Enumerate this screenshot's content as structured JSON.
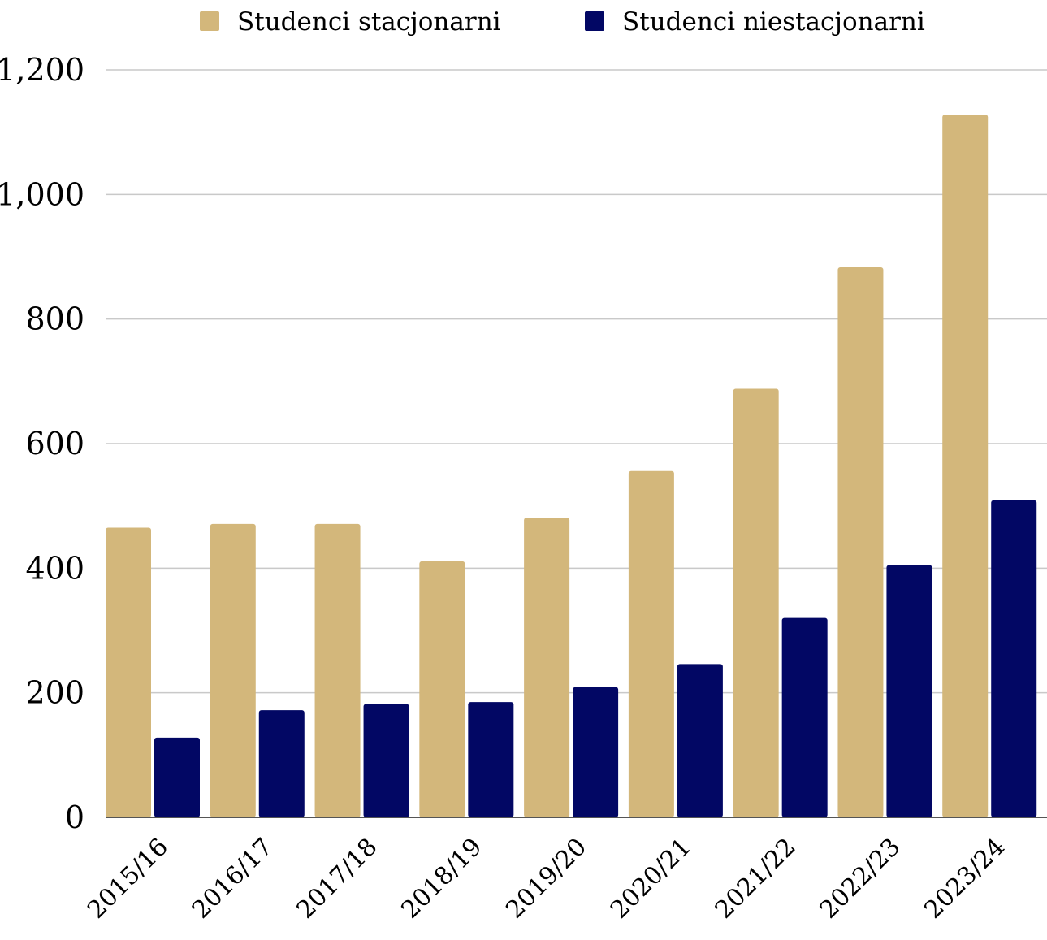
{
  "chart_data": {
    "type": "bar",
    "categories": [
      "2015/16",
      "2016/17",
      "2017/18",
      "2018/19",
      "2019/20",
      "2020/21",
      "2021/22",
      "2022/23",
      "2023/24"
    ],
    "series": [
      {
        "name": "Studenci stacjonarni",
        "color": "#d3b77b",
        "values": [
          465,
          471,
          471,
          411,
          481,
          556,
          688,
          883,
          1128
        ]
      },
      {
        "name": "Studenci niestacjonarni",
        "color": "#020764",
        "values": [
          128,
          172,
          182,
          185,
          209,
          246,
          320,
          405,
          509
        ]
      }
    ],
    "yticks": [
      "0",
      "200",
      "400",
      "600",
      "800",
      "1,000",
      "1,200"
    ],
    "ylim": [
      0,
      1200
    ],
    "grid": true,
    "legend_position": "top",
    "title": "",
    "xlabel": "",
    "ylabel": ""
  }
}
